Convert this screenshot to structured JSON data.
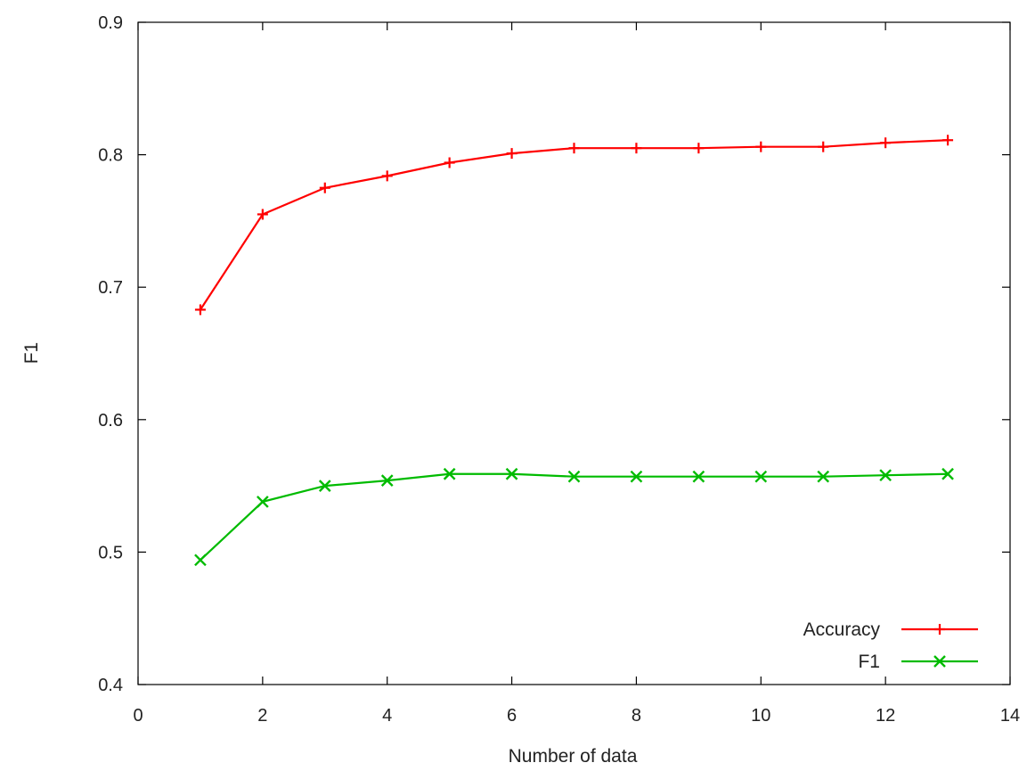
{
  "chart_data": {
    "type": "line",
    "title": "",
    "xlabel": "Number of data",
    "ylabel": "F1",
    "xlim": [
      0,
      14
    ],
    "ylim": [
      0.4,
      0.9
    ],
    "xticks": [
      0,
      2,
      4,
      6,
      8,
      10,
      12,
      14
    ],
    "yticks": [
      0.4,
      0.5,
      0.6,
      0.7,
      0.8,
      0.9
    ],
    "xtick_labels": [
      "0",
      "2",
      "4",
      "6",
      "8",
      "10",
      "12",
      "14"
    ],
    "ytick_labels": [
      "0.4",
      "0.5",
      "0.6",
      "0.7",
      "0.8",
      "0.9"
    ],
    "grid": false,
    "legend_position": "bottom-right",
    "x": [
      1,
      2,
      3,
      4,
      5,
      6,
      7,
      8,
      9,
      10,
      11,
      12,
      13
    ],
    "series": [
      {
        "name": "Accuracy",
        "color": "#ff0000",
        "marker": "plus",
        "values": [
          0.683,
          0.755,
          0.775,
          0.784,
          0.794,
          0.801,
          0.805,
          0.805,
          0.805,
          0.806,
          0.806,
          0.809,
          0.811
        ]
      },
      {
        "name": "F1",
        "color": "#00bb00",
        "marker": "cross",
        "values": [
          0.494,
          0.538,
          0.55,
          0.554,
          0.559,
          0.559,
          0.557,
          0.557,
          0.557,
          0.557,
          0.557,
          0.558,
          0.559
        ]
      }
    ]
  }
}
